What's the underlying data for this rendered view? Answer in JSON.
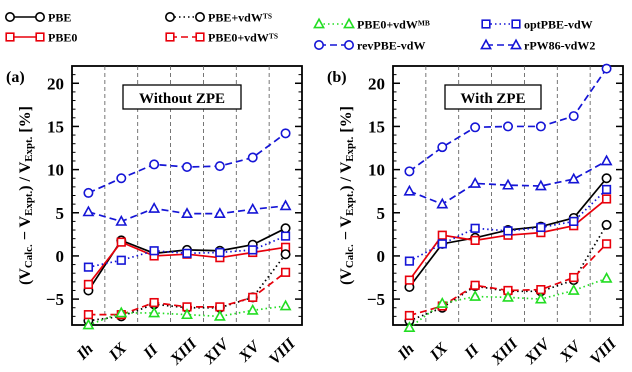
{
  "chart_data": [
    {
      "type": "line",
      "panel_label": "(a)",
      "title": "Without ZPE",
      "xlabel": "",
      "ylabel": "(V_Calc. − V_Expt.) / V_Expt. [%]",
      "categories": [
        "Ih",
        "IX",
        "II",
        "XIII",
        "XIV",
        "XV",
        "VIII"
      ],
      "ylim": [
        -8,
        22
      ],
      "yticks": [
        -5,
        0,
        5,
        10,
        15,
        20
      ],
      "series": [
        {
          "key": "pbe",
          "name": "PBE",
          "values": [
            -4.0,
            1.8,
            0.3,
            0.7,
            0.6,
            1.3,
            3.2
          ]
        },
        {
          "key": "pbe0",
          "name": "PBE0",
          "values": [
            -3.3,
            1.6,
            0.0,
            0.2,
            -0.2,
            0.4,
            1.0
          ]
        },
        {
          "key": "pbets",
          "name": "PBE+vdW^TS",
          "values": [
            -7.5,
            -7.0,
            -5.6,
            -6.0,
            -6.0,
            -4.8,
            0.2
          ]
        },
        {
          "key": "pbe0ts",
          "name": "PBE0+vdW^TS",
          "values": [
            -6.8,
            -6.8,
            -5.4,
            -5.9,
            -5.9,
            -4.8,
            -1.9
          ]
        },
        {
          "key": "pbe0mb",
          "name": "PBE0+vdW^MB",
          "values": [
            -8.0,
            -6.6,
            -6.6,
            -6.8,
            -7.0,
            -6.3,
            -5.8
          ]
        },
        {
          "key": "revpbe",
          "name": "revPBE-vdW",
          "values": [
            7.3,
            9.0,
            10.6,
            10.3,
            10.4,
            11.4,
            14.2
          ]
        },
        {
          "key": "optpbe",
          "name": "optPBE-vdW",
          "values": [
            -1.3,
            -0.5,
            0.6,
            0.3,
            0.4,
            0.7,
            2.3
          ]
        },
        {
          "key": "rpw86",
          "name": "rPW86-vdW2",
          "values": [
            5.1,
            4.0,
            5.5,
            4.9,
            4.9,
            5.4,
            5.8
          ]
        }
      ]
    },
    {
      "type": "line",
      "panel_label": "(b)",
      "title": "With ZPE",
      "xlabel": "",
      "ylabel": "(V_Calc. − V_Expt.) / V_Expt. [%]",
      "categories": [
        "Ih",
        "IX",
        "II",
        "XIII",
        "XIV",
        "XV",
        "VIII"
      ],
      "ylim": [
        -8,
        22
      ],
      "yticks": [
        -5,
        0,
        5,
        10,
        15,
        20
      ],
      "series": [
        {
          "key": "pbe",
          "name": "PBE",
          "values": [
            -3.6,
            1.4,
            2.1,
            3.0,
            3.4,
            4.4,
            9.0
          ]
        },
        {
          "key": "pbe0",
          "name": "PBE0",
          "values": [
            -2.8,
            2.4,
            1.8,
            2.4,
            2.7,
            3.5,
            6.6
          ]
        },
        {
          "key": "pbets",
          "name": "PBE+vdW^TS",
          "values": [
            -7.5,
            -6.0,
            -3.5,
            -4.1,
            -4.1,
            -2.8,
            3.6
          ]
        },
        {
          "key": "pbe0ts",
          "name": "PBE0+vdW^TS",
          "values": [
            -6.9,
            -5.8,
            -3.4,
            -4.0,
            -3.9,
            -2.5,
            1.4
          ]
        },
        {
          "key": "pbe0mb",
          "name": "PBE0+vdW^MB",
          "values": [
            -8.3,
            -5.5,
            -4.7,
            -4.8,
            -5.0,
            -4.0,
            -2.6
          ]
        },
        {
          "key": "revpbe",
          "name": "revPBE-vdW",
          "values": [
            9.8,
            12.6,
            14.9,
            15.0,
            15.0,
            16.2,
            21.7
          ]
        },
        {
          "key": "optpbe",
          "name": "optPBE-vdW",
          "values": [
            -0.6,
            1.4,
            3.2,
            2.9,
            3.3,
            4.0,
            7.7
          ]
        },
        {
          "key": "rpw86",
          "name": "rPW86-vdW2",
          "values": [
            7.5,
            6.0,
            8.4,
            8.2,
            8.1,
            8.9,
            11.0
          ]
        }
      ]
    }
  ]
}
